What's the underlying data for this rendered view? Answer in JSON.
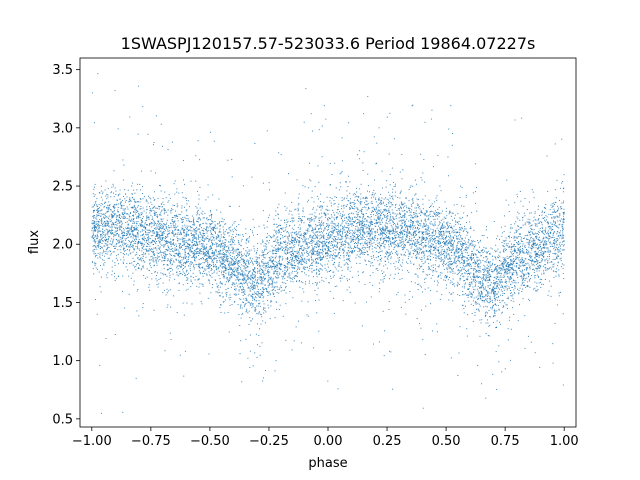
{
  "chart_data": {
    "type": "scatter",
    "title": "1SWASPJ120157.57-523033.6 Period 19864.07227s",
    "xlabel": "phase",
    "ylabel": "flux",
    "xlim": [
      -1.05,
      1.05
    ],
    "ylim": [
      0.43,
      3.6
    ],
    "xticks": [
      -1.0,
      -0.75,
      -0.5,
      -0.25,
      0.0,
      0.25,
      0.5,
      0.75,
      1.0
    ],
    "xtick_labels": [
      "−1.00",
      "−0.75",
      "−0.50",
      "−0.25",
      "0.00",
      "0.25",
      "0.50",
      "0.75",
      "1.00"
    ],
    "yticks": [
      0.5,
      1.0,
      1.5,
      2.0,
      2.5,
      3.0,
      3.5
    ],
    "ytick_labels": [
      "0.5",
      "1.0",
      "1.5",
      "2.0",
      "2.5",
      "3.0",
      "3.5"
    ],
    "grid": false,
    "marker_color": "#1f77b4",
    "series": [
      {
        "light_curve_profile": {
          "phase": [
            -1.0,
            -0.9,
            -0.8,
            -0.7,
            -0.6,
            -0.5,
            -0.4,
            -0.35,
            -0.3,
            -0.25,
            -0.2,
            -0.1,
            0.0,
            0.1,
            0.2,
            0.3,
            0.4,
            0.5,
            0.6,
            0.65,
            0.7,
            0.75,
            0.8,
            0.9,
            1.0
          ],
          "median_flux": [
            2.1,
            2.15,
            2.12,
            2.06,
            2.0,
            1.97,
            1.82,
            1.72,
            1.65,
            1.78,
            1.9,
            1.97,
            2.03,
            2.12,
            2.15,
            2.12,
            2.06,
            2.0,
            1.82,
            1.72,
            1.65,
            1.78,
            1.9,
            1.97,
            2.1
          ],
          "scatter_sigma": 0.17
        }
      }
    ]
  }
}
